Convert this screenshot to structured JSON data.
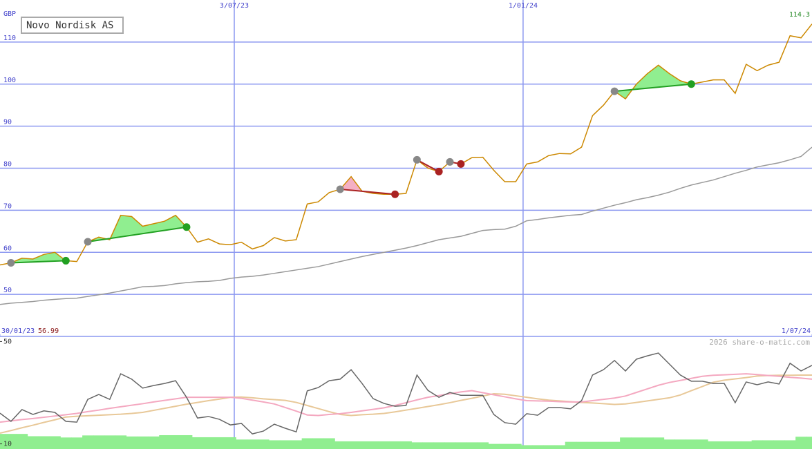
{
  "chart_data": [
    {
      "type": "line",
      "title": "Novo Nordisk AS",
      "y_label": "GBP",
      "x": [
        0,
        1,
        2,
        3,
        4,
        5,
        6,
        7,
        8,
        9,
        10,
        11,
        12,
        13,
        14,
        15,
        16,
        17,
        18,
        19,
        20,
        21,
        22,
        23,
        24,
        25,
        26,
        27,
        28,
        29,
        30,
        31,
        32,
        33,
        34,
        35,
        36,
        37,
        38,
        39,
        40,
        41,
        42,
        43,
        44,
        45,
        46,
        47,
        48,
        49,
        50,
        51,
        52,
        53,
        54,
        55,
        56,
        57,
        58,
        59,
        60,
        61,
        62,
        63,
        64,
        65,
        66,
        67,
        68,
        69,
        70,
        71,
        72,
        73,
        74
      ],
      "xlim": [
        0,
        74
      ],
      "xticks": [
        {
          "value": 0,
          "label": "30/01/23"
        },
        {
          "value": 21.35,
          "label": "3/07/23"
        },
        {
          "value": 47.67,
          "label": "1/01/24"
        },
        {
          "value": 74,
          "label": "1/07/24"
        }
      ],
      "ylim": [
        40,
        120
      ],
      "yticks": [
        50,
        60,
        70,
        80,
        90,
        100,
        110
      ],
      "grid": true,
      "series": [
        {
          "color": "#cc8800",
          "values": [
            56.99,
            57.5,
            58.6,
            58.4,
            59.5,
            60.0,
            58.0,
            57.8,
            62.5,
            63.6,
            63.0,
            68.8,
            68.5,
            66.2,
            66.8,
            67.4,
            68.8,
            66.0,
            62.4,
            63.2,
            62.0,
            61.8,
            62.4,
            60.8,
            61.6,
            63.5,
            62.7,
            63.0,
            71.5,
            72.0,
            74.2,
            75.0,
            78.0,
            74.5,
            74.0,
            73.8,
            73.8,
            74.0,
            82.0,
            80.0,
            79.2,
            81.5,
            81.0,
            82.5,
            82.6,
            79.5,
            76.8,
            76.8,
            81.0,
            81.5,
            83.0,
            83.5,
            83.4,
            85.0,
            92.5,
            95.0,
            98.3,
            96.5,
            100.0,
            102.5,
            104.5,
            102.5,
            100.8,
            100.0,
            100.5,
            101.0,
            101.0,
            97.8,
            104.7,
            103.2,
            104.5,
            105.2,
            111.5,
            111.0,
            114.3
          ]
        },
        {
          "color": "#999999",
          "values": [
            47.6,
            47.9,
            48.1,
            48.3,
            48.6,
            48.8,
            49.0,
            49.1,
            49.5,
            49.9,
            50.3,
            50.8,
            51.3,
            51.8,
            51.9,
            52.1,
            52.5,
            52.8,
            53.0,
            53.1,
            53.3,
            53.8,
            54.1,
            54.3,
            54.6,
            55.0,
            55.4,
            55.8,
            56.2,
            56.6,
            57.2,
            57.8,
            58.4,
            59.0,
            59.5,
            60.0,
            60.5,
            61.0,
            61.6,
            62.3,
            63.0,
            63.4,
            63.8,
            64.5,
            65.2,
            65.4,
            65.5,
            66.2,
            67.5,
            67.8,
            68.2,
            68.5,
            68.8,
            69.0,
            69.8,
            70.5,
            71.2,
            71.8,
            72.5,
            73.0,
            73.6,
            74.3,
            75.2,
            76.0,
            76.6,
            77.2,
            78.0,
            78.8,
            79.5,
            80.3,
            80.8,
            81.3,
            82.0,
            82.8,
            85.0
          ]
        }
      ],
      "trades": [
        {
          "from": 1,
          "to": 6,
          "color": "#22a022",
          "fill": "#90ee90"
        },
        {
          "from": 8,
          "to": 17,
          "color": "#22a022",
          "fill": "#90ee90"
        },
        {
          "from": 31,
          "to": 36,
          "color": "#aa2222",
          "fill": "#f4b0c4"
        },
        {
          "from": 38,
          "to": 40,
          "color": "#aa2222",
          "fill": "#f4b0c4"
        },
        {
          "from": 41,
          "to": 42,
          "color": "#aa2222",
          "fill": "#f4b0c4"
        },
        {
          "from": 56,
          "to": 63,
          "color": "#22a022",
          "fill": "#90ee90"
        }
      ]
    },
    {
      "type": "line",
      "credit": "2026 share-o-matic.com",
      "x": [
        0,
        1,
        2,
        3,
        4,
        5,
        6,
        7,
        8,
        9,
        10,
        11,
        12,
        13,
        14,
        15,
        16,
        17,
        18,
        19,
        20,
        21,
        22,
        23,
        24,
        25,
        26,
        27,
        28,
        29,
        30,
        31,
        32,
        33,
        34,
        35,
        36,
        37,
        38,
        39,
        40,
        41,
        42,
        43,
        44,
        45,
        46,
        47,
        48,
        49,
        50,
        51,
        52,
        53,
        54,
        55,
        56,
        57,
        58,
        59,
        60,
        61,
        62,
        63,
        64,
        65,
        66,
        67,
        68,
        69,
        70,
        71,
        72,
        73,
        74
      ],
      "xlim": [
        0,
        74
      ],
      "ylim": [
        8,
        52
      ],
      "yticks": [
        10,
        50
      ],
      "series": [
        {
          "type": "bar",
          "color": "#90ee90",
          "values": [
            13.9,
            13.9,
            13.9,
            13.0,
            13.0,
            13.0,
            12.5,
            12.5,
            13.3,
            13.3,
            13.3,
            13.3,
            12.9,
            12.9,
            12.9,
            13.4,
            13.4,
            13.4,
            12.6,
            12.6,
            12.6,
            12.6,
            11.7,
            11.7,
            11.7,
            11.4,
            11.4,
            11.4,
            12.2,
            12.2,
            12.2,
            11.0,
            11.0,
            11.0,
            11.0,
            11.0,
            11.0,
            11.0,
            10.6,
            10.6,
            10.6,
            10.6,
            10.6,
            10.6,
            10.6,
            10.0,
            10.0,
            10.0,
            9.5,
            9.5,
            9.5,
            9.5,
            10.8,
            10.8,
            10.8,
            10.8,
            10.8,
            12.5,
            12.5,
            12.5,
            12.5,
            11.7,
            11.7,
            11.7,
            11.7,
            11.0,
            11.0,
            11.0,
            11.0,
            11.4,
            11.4,
            11.4,
            11.4,
            12.8,
            12.8
          ]
        },
        {
          "color": "#e8c898",
          "values": [
            14.2,
            15.2,
            16.3,
            17.3,
            18.4,
            19.4,
            20.5,
            20.8,
            21.0,
            21.2,
            21.4,
            21.6,
            21.9,
            22.3,
            23.1,
            23.9,
            24.7,
            25.5,
            26.2,
            26.9,
            27.5,
            28.2,
            28.3,
            28.0,
            27.6,
            27.3,
            27.0,
            26.2,
            25.0,
            23.8,
            22.6,
            21.5,
            21.1,
            21.4,
            21.6,
            21.9,
            22.5,
            23.2,
            23.9,
            24.6,
            25.3,
            26.1,
            27.0,
            27.8,
            28.7,
            29.6,
            29.4,
            28.8,
            28.2,
            27.6,
            27.1,
            26.8,
            26.5,
            26.2,
            26.0,
            25.7,
            25.4,
            25.6,
            26.2,
            26.8,
            27.4,
            28.0,
            29.1,
            30.8,
            32.4,
            34.1,
            34.9,
            35.4,
            35.9,
            36.5,
            36.7,
            36.8,
            36.8,
            36.9,
            36.9
          ]
        },
        {
          "color": "#f4a8c0",
          "values": [
            18.5,
            19.0,
            19.5,
            19.9,
            20.4,
            20.9,
            21.4,
            21.9,
            22.6,
            23.2,
            23.9,
            24.5,
            25.1,
            25.7,
            26.4,
            27.0,
            27.6,
            28.2,
            28.2,
            28.2,
            28.2,
            28.2,
            27.8,
            27.1,
            26.4,
            25.6,
            24.2,
            22.8,
            21.3,
            21.1,
            21.5,
            21.8,
            22.3,
            22.9,
            23.5,
            24.1,
            25.0,
            26.1,
            27.2,
            28.2,
            28.9,
            29.6,
            30.3,
            30.8,
            30.0,
            29.2,
            28.4,
            27.6,
            26.9,
            26.8,
            26.7,
            26.5,
            26.4,
            26.4,
            26.9,
            27.4,
            27.9,
            28.7,
            30.1,
            31.5,
            32.9,
            34.0,
            34.8,
            35.6,
            36.4,
            36.8,
            37.0,
            37.2,
            37.4,
            37.1,
            36.7,
            36.4,
            36.0,
            35.7,
            35.3
          ]
        },
        {
          "color": "#666666",
          "values": [
            22.0,
            18.8,
            23.4,
            21.5,
            22.9,
            22.3,
            18.8,
            18.5,
            27.4,
            29.3,
            27.4,
            37.4,
            35.3,
            31.8,
            32.8,
            33.6,
            34.7,
            28.2,
            20.1,
            20.7,
            19.6,
            17.4,
            18.0,
            13.9,
            15.0,
            17.7,
            16.1,
            14.7,
            30.7,
            32.0,
            34.7,
            35.3,
            39.0,
            33.6,
            27.7,
            25.8,
            24.7,
            25.0,
            36.9,
            30.9,
            28.2,
            30.1,
            29.0,
            29.0,
            29.0,
            21.5,
            18.3,
            17.7,
            21.8,
            21.2,
            24.2,
            24.2,
            23.7,
            26.9,
            36.9,
            39.0,
            42.6,
            38.5,
            43.1,
            44.4,
            45.5,
            41.2,
            36.9,
            34.5,
            34.5,
            33.6,
            33.6,
            26.1,
            34.2,
            33.1,
            34.2,
            33.4,
            41.5,
            38.5,
            40.7
          ]
        }
      ]
    }
  ]
}
